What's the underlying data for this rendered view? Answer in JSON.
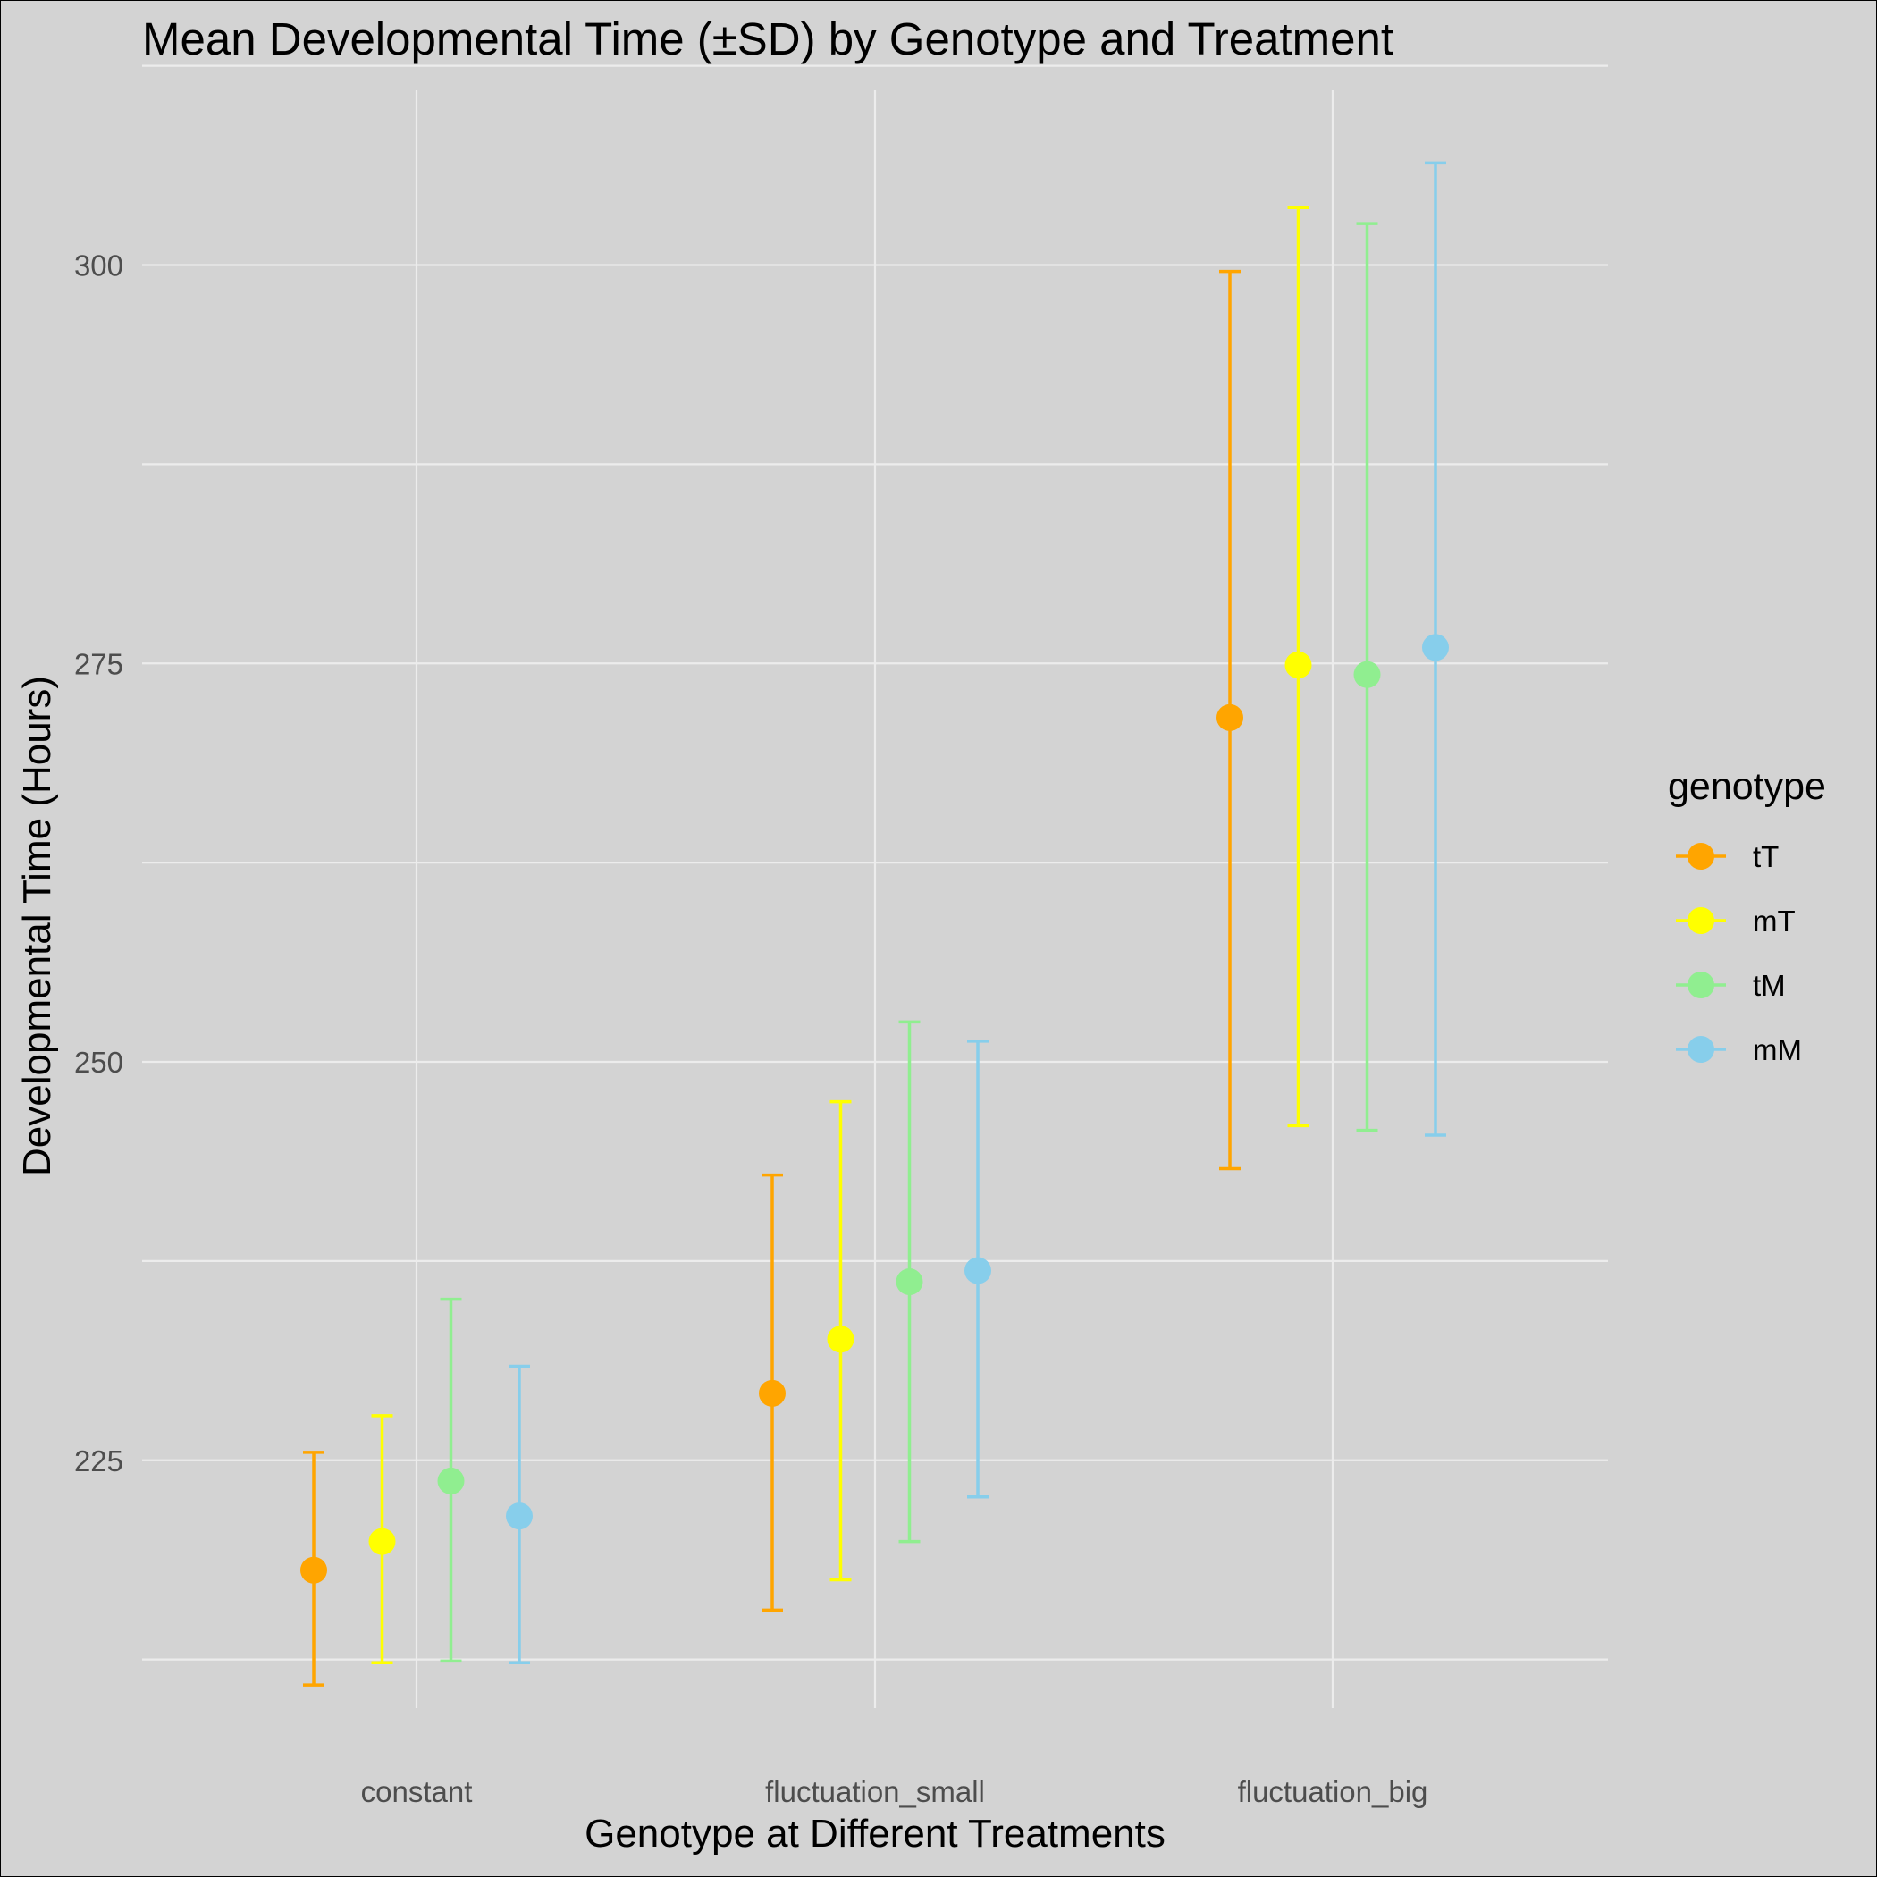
{
  "chart_data": {
    "type": "scatter",
    "title": "Mean Developmental Time (±SD) by Genotype and Treatment",
    "xlabel": "Genotype at Different Treatments",
    "ylabel": "Developmental Time (Hours)",
    "categories": [
      "constant",
      "fluctuation_small",
      "fluctuation_big"
    ],
    "yticks": [
      225,
      250,
      275,
      300
    ],
    "ylim": [
      207,
      313
    ],
    "grid": true,
    "legend": {
      "title": "genotype",
      "position": "right"
    },
    "series": [
      {
        "name": "tT",
        "color": "#FFA500",
        "means": [
          218.1,
          229.2,
          271.6
        ],
        "sd_lower": [
          210.9,
          215.6,
          243.3
        ],
        "sd_upper": [
          225.5,
          242.9,
          299.6
        ]
      },
      {
        "name": "mT",
        "color": "#FFFF00",
        "means": [
          219.9,
          232.6,
          274.9
        ],
        "sd_lower": [
          212.3,
          217.5,
          246.0
        ],
        "sd_upper": [
          227.8,
          247.5,
          303.6
        ]
      },
      {
        "name": "tM",
        "color": "#90EE90",
        "means": [
          223.7,
          236.2,
          274.3
        ],
        "sd_lower": [
          212.4,
          219.9,
          245.7
        ],
        "sd_upper": [
          235.1,
          252.5,
          302.6
        ]
      },
      {
        "name": "mM",
        "color": "#87CEEB",
        "means": [
          221.5,
          236.9,
          276.0
        ],
        "sd_lower": [
          212.3,
          222.7,
          245.4
        ],
        "sd_upper": [
          230.9,
          251.3,
          306.4
        ]
      }
    ]
  }
}
